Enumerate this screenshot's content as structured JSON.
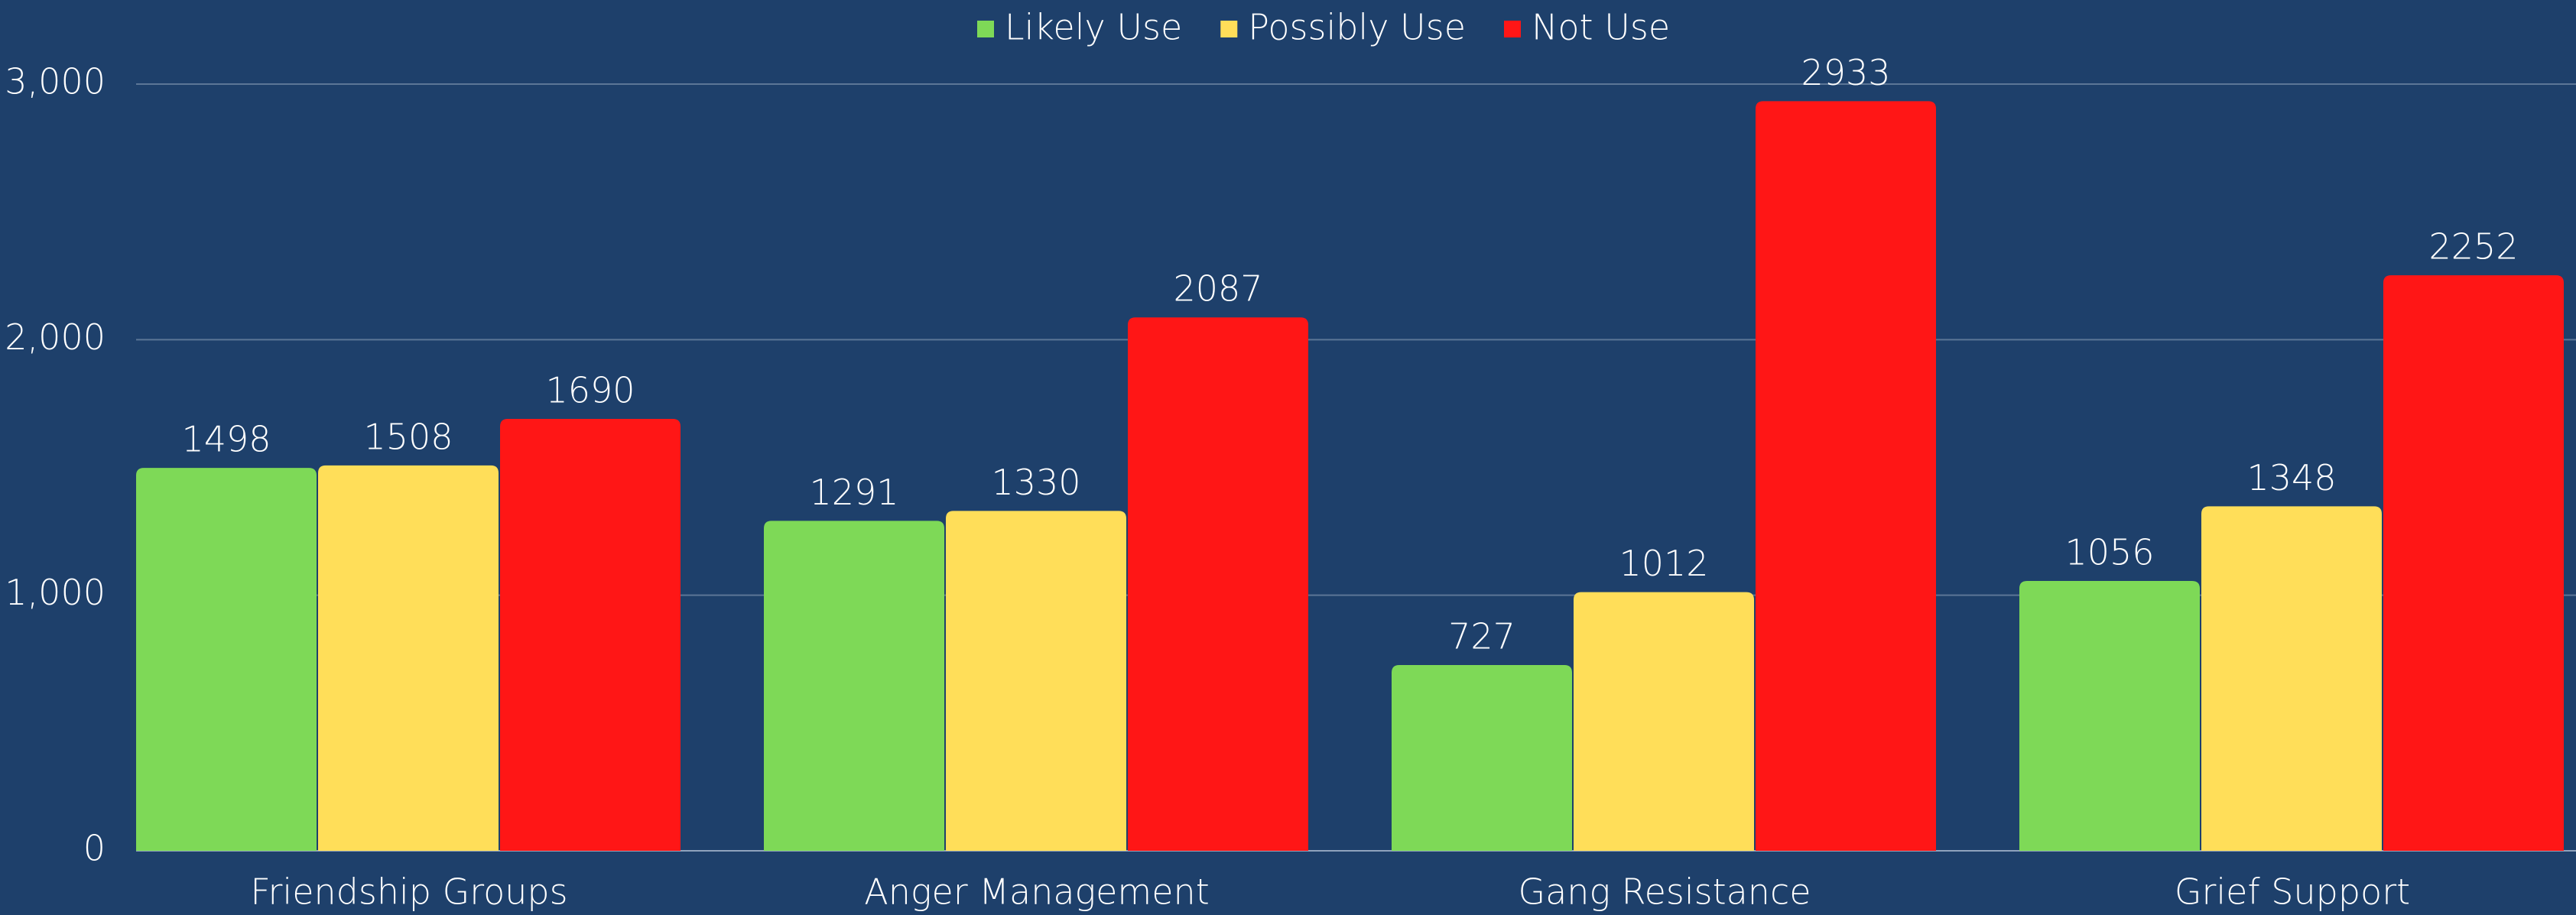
{
  "chart_data": {
    "type": "bar",
    "categories": [
      "Friendship Groups",
      "Anger Management",
      "Gang Resistance",
      "Grief Support"
    ],
    "series": [
      {
        "name": "Likely Use",
        "color": "#7ed957",
        "values": [
          1498,
          1291,
          727,
          1056
        ]
      },
      {
        "name": "Possibly Use",
        "color": "#ffde59",
        "values": [
          1508,
          1330,
          1012,
          1348
        ]
      },
      {
        "name": "Not Use",
        "color": "#ff1616",
        "values": [
          1690,
          2087,
          2933,
          2252
        ]
      }
    ],
    "ylim": [
      0,
      3000
    ],
    "yticks": [
      0,
      {
        "value": 1000,
        "label": "1,000"
      },
      {
        "value": 2000,
        "label": "2,000"
      },
      {
        "value": 3000,
        "label": "3,000"
      }
    ],
    "grid": true,
    "legend": "top"
  }
}
